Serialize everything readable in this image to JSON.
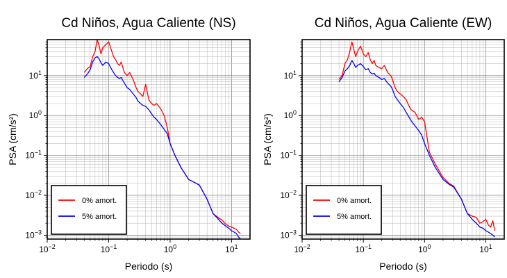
{
  "chart_data": [
    {
      "type": "line",
      "title": "Cd Niños, Agua Caliente (NS)",
      "xlabel": "Periodo (s)",
      "ylabel": "PSA (cm/s²)",
      "xscale": "log",
      "yscale": "log",
      "xlim": [
        0.01,
        20
      ],
      "ylim": [
        0.0008,
        80
      ],
      "x_ticks": [
        {
          "value": 0.01,
          "base": "10",
          "exp": "−2"
        },
        {
          "value": 0.1,
          "base": "10",
          "exp": "−1"
        },
        {
          "value": 1,
          "base": "10",
          "exp": "0"
        },
        {
          "value": 10,
          "base": "10",
          "exp": "1"
        }
      ],
      "y_ticks": [
        {
          "value": 0.001,
          "base": "10",
          "exp": "−3"
        },
        {
          "value": 0.01,
          "base": "10",
          "exp": "−2"
        },
        {
          "value": 0.1,
          "base": "10",
          "exp": "−1"
        },
        {
          "value": 1,
          "base": "10",
          "exp": "0"
        },
        {
          "value": 10,
          "base": "10",
          "exp": "1"
        }
      ],
      "grid": true,
      "legend_position": "bottom-left",
      "series": [
        {
          "name": "0% amort.",
          "color": "#ff0000",
          "x": [
            0.04,
            0.045,
            0.05,
            0.055,
            0.06,
            0.065,
            0.07,
            0.075,
            0.08,
            0.09,
            0.1,
            0.11,
            0.12,
            0.13,
            0.14,
            0.15,
            0.16,
            0.18,
            0.2,
            0.22,
            0.25,
            0.28,
            0.3,
            0.33,
            0.36,
            0.4,
            0.45,
            0.5,
            0.55,
            0.6,
            0.7,
            0.8,
            0.9,
            1.0,
            1.2,
            1.5,
            2.0,
            2.5,
            3.0,
            4.0,
            5.0,
            6.0,
            7.0,
            8.0,
            9.0,
            10.0,
            11.0,
            12.0,
            13.0,
            14.0
          ],
          "y": [
            12,
            15,
            17,
            30,
            40,
            80,
            55,
            35,
            50,
            60,
            70,
            45,
            30,
            25,
            20,
            18,
            22,
            12,
            10,
            12,
            8,
            5,
            4,
            3.5,
            3,
            6,
            2.5,
            2,
            1.8,
            2.0,
            1.5,
            1.0,
            0.5,
            0.2,
            0.1,
            0.05,
            0.025,
            0.021,
            0.018,
            0.008,
            0.0035,
            0.0028,
            0.0024,
            0.0019,
            0.0017,
            0.0016,
            0.0015,
            0.0014,
            0.0012,
            0.0011
          ]
        },
        {
          "name": "5% amort.",
          "color": "#0000ff",
          "x": [
            0.04,
            0.045,
            0.05,
            0.055,
            0.06,
            0.065,
            0.07,
            0.075,
            0.08,
            0.09,
            0.1,
            0.11,
            0.12,
            0.13,
            0.14,
            0.15,
            0.16,
            0.18,
            0.2,
            0.22,
            0.25,
            0.28,
            0.3,
            0.33,
            0.36,
            0.4,
            0.45,
            0.5,
            0.55,
            0.6,
            0.7,
            0.8,
            0.9,
            1.0,
            1.2,
            1.5,
            2.0,
            2.5,
            3.0,
            4.0,
            5.0,
            6.0,
            7.0,
            8.0,
            9.0,
            10.0,
            11.0,
            12.0,
            13.0,
            14.0
          ],
          "y": [
            9,
            11,
            14,
            22,
            28,
            30,
            26,
            21,
            18,
            22,
            20,
            15,
            12,
            10,
            9,
            8.5,
            9,
            6.5,
            5,
            4.5,
            3.5,
            2.8,
            2.3,
            2.0,
            1.8,
            1.7,
            1.4,
            1.1,
            0.9,
            0.8,
            0.6,
            0.45,
            0.35,
            0.2,
            0.1,
            0.05,
            0.025,
            0.021,
            0.018,
            0.008,
            0.0035,
            0.0026,
            0.002,
            0.0017,
            0.0015,
            0.0013,
            0.0012,
            0.0011,
            0.0009,
            0.0008
          ]
        }
      ]
    },
    {
      "type": "line",
      "title": "Cd Niños, Agua Caliente (EW)",
      "xlabel": "Periodo (s)",
      "ylabel": "PSA (cm/s²)",
      "xscale": "log",
      "yscale": "log",
      "xlim": [
        0.01,
        20
      ],
      "ylim": [
        0.0008,
        80
      ],
      "x_ticks": [
        {
          "value": 0.01,
          "base": "10",
          "exp": "−2"
        },
        {
          "value": 0.1,
          "base": "10",
          "exp": "−1"
        },
        {
          "value": 1,
          "base": "10",
          "exp": "0"
        },
        {
          "value": 10,
          "base": "10",
          "exp": "1"
        }
      ],
      "y_ticks": [
        {
          "value": 0.001,
          "base": "10",
          "exp": "−3"
        },
        {
          "value": 0.01,
          "base": "10",
          "exp": "−2"
        },
        {
          "value": 0.1,
          "base": "10",
          "exp": "−1"
        },
        {
          "value": 1,
          "base": "10",
          "exp": "0"
        },
        {
          "value": 10,
          "base": "10",
          "exp": "1"
        }
      ],
      "grid": true,
      "legend_position": "bottom-left",
      "series": [
        {
          "name": "0% amort.",
          "color": "#ff0000",
          "x": [
            0.04,
            0.045,
            0.05,
            0.055,
            0.06,
            0.065,
            0.07,
            0.075,
            0.08,
            0.09,
            0.1,
            0.11,
            0.12,
            0.13,
            0.14,
            0.15,
            0.16,
            0.18,
            0.2,
            0.22,
            0.25,
            0.28,
            0.3,
            0.33,
            0.36,
            0.4,
            0.45,
            0.5,
            0.55,
            0.6,
            0.7,
            0.8,
            0.9,
            1.0,
            1.2,
            1.5,
            2.0,
            2.5,
            3.0,
            4.0,
            5.0,
            6.0,
            7.0,
            8.0,
            9.0,
            10.0,
            11.0,
            12.0,
            13.0,
            14.0
          ],
          "y": [
            8,
            10,
            20,
            25,
            40,
            70,
            45,
            30,
            40,
            55,
            35,
            30,
            38,
            25,
            20,
            24,
            18,
            16,
            15,
            18,
            12,
            10,
            8,
            5,
            4,
            3.5,
            3.0,
            2.5,
            1.8,
            1.4,
            1.2,
            0.8,
            0.9,
            0.7,
            0.12,
            0.06,
            0.028,
            0.02,
            0.017,
            0.008,
            0.0035,
            0.003,
            0.0028,
            0.002,
            0.0022,
            0.0025,
            0.0018,
            0.0016,
            0.0023,
            0.0013
          ]
        },
        {
          "name": "5% amort.",
          "color": "#0000ff",
          "x": [
            0.04,
            0.045,
            0.05,
            0.055,
            0.06,
            0.065,
            0.07,
            0.075,
            0.08,
            0.09,
            0.1,
            0.11,
            0.12,
            0.13,
            0.14,
            0.15,
            0.16,
            0.18,
            0.2,
            0.22,
            0.25,
            0.28,
            0.3,
            0.33,
            0.36,
            0.4,
            0.45,
            0.5,
            0.55,
            0.6,
            0.7,
            0.8,
            0.9,
            1.0,
            1.2,
            1.5,
            2.0,
            2.5,
            3.0,
            4.0,
            5.0,
            6.0,
            7.0,
            8.0,
            9.0,
            10.0,
            11.0,
            12.0,
            13.0,
            14.0
          ],
          "y": [
            7,
            9,
            13,
            15,
            18,
            24,
            20,
            16,
            18,
            20,
            17,
            14,
            15,
            12,
            11,
            11.5,
            10,
            9,
            8,
            8.5,
            6.5,
            5.5,
            4.5,
            3,
            2.5,
            2.0,
            1.6,
            1.2,
            0.95,
            0.75,
            0.55,
            0.42,
            0.32,
            0.2,
            0.1,
            0.05,
            0.025,
            0.019,
            0.016,
            0.008,
            0.0035,
            0.0025,
            0.002,
            0.0016,
            0.0015,
            0.0013,
            0.0012,
            0.0011,
            0.001,
            0.0009
          ]
        }
      ]
    }
  ]
}
